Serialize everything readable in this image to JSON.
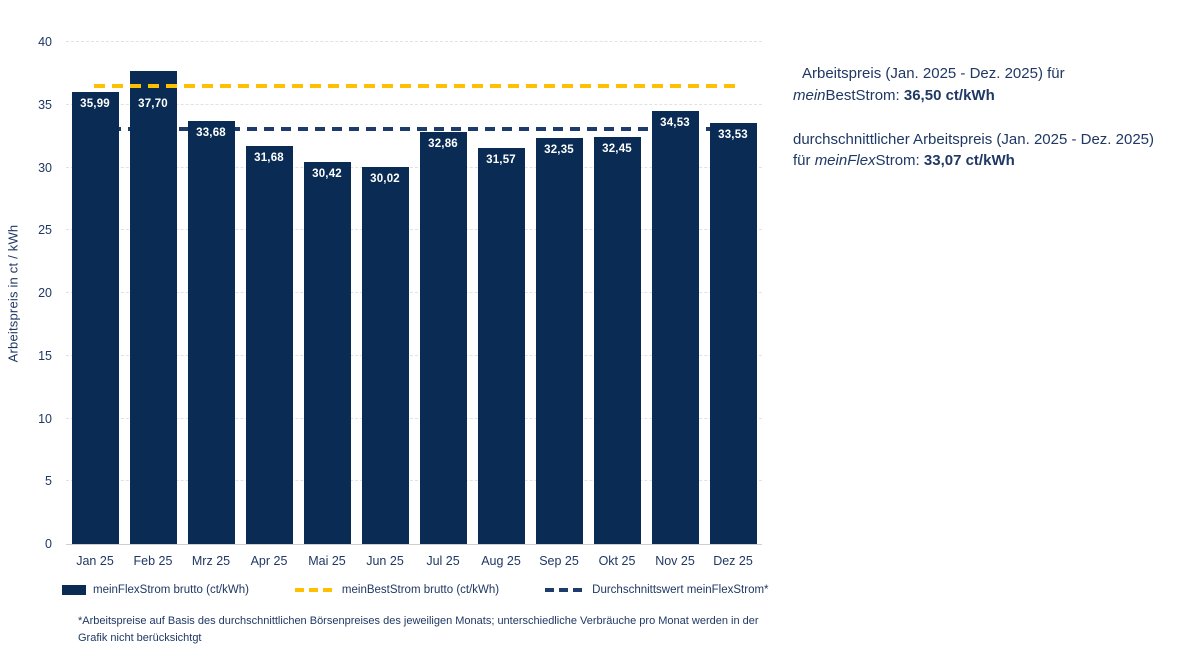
{
  "chart_data": {
    "type": "bar",
    "categories": [
      "Jan 25",
      "Feb 25",
      "Mrz 25",
      "Apr 25",
      "Mai 25",
      "Jun 25",
      "Jul 25",
      "Aug 25",
      "Sep 25",
      "Okt 25",
      "Nov 25",
      "Dez 25"
    ],
    "values": [
      35.99,
      37.7,
      33.68,
      31.68,
      30.42,
      30.02,
      32.86,
      31.57,
      32.35,
      32.45,
      34.53,
      33.53
    ],
    "value_labels": [
      "35,99",
      "37,70",
      "33,68",
      "31,68",
      "30,42",
      "30,02",
      "32,86",
      "31,57",
      "32,35",
      "32,45",
      "34,53",
      "33,53"
    ],
    "ylabel": "Arbeitspreis in ct / kWh",
    "xlabel": "",
    "ylim": [
      0,
      40
    ],
    "yticks": [
      0,
      5,
      10,
      15,
      20,
      25,
      30,
      35,
      40
    ],
    "grid": "horizontal-dashed",
    "bar_color": "#0a2c54",
    "reference_lines": [
      {
        "name": "meinBestStrom brutto (ct/kWh)",
        "value": 36.5,
        "color": "#ffc000",
        "style": "dashed"
      },
      {
        "name": "Durchschnittswert meinFlexStrom*",
        "value": 33.07,
        "color": "#1d3c6b",
        "style": "dashed"
      }
    ],
    "legend": [
      {
        "label": "meinFlexStrom brutto (ct/kWh)",
        "marker": "bar-swatch",
        "color": "#0a2c54"
      },
      {
        "label": "meinBestStrom brutto (ct/kWh)",
        "marker": "dashed-line",
        "color": "#ffc000"
      },
      {
        "label": "Durchschnittswert meinFlexStrom*",
        "marker": "dashed-line",
        "color": "#1d3c6b"
      }
    ],
    "legend_position": "bottom"
  },
  "annotations": {
    "best": {
      "line1": "Arbeitspreis (Jan. 2025 - Dez. 2025) für",
      "italic": "mein",
      "normal": "BestStrom: ",
      "bold": "36,50 ct/kWh"
    },
    "flex": {
      "line1": "durchschnittlicher Arbeitspreis (Jan. 2025 - Dez. 2025)",
      "line2_prefix": "für ",
      "italic": "meinFlex",
      "normal": "Strom: ",
      "bold": "33,07 ct/kWh"
    }
  },
  "footnote": "*Arbeitspreise auf Basis des durchschnittlichen Börsenpreises des jeweiligen Monats; unterschiedliche Verbräuche pro Monat werden in der Grafik nicht berücksichtgt",
  "colors": {
    "bar": "#0a2c54",
    "best_line": "#ffc000",
    "avg_line": "#1d3c6b",
    "text": "#1f3864",
    "gridline": "#e2e2e2"
  }
}
